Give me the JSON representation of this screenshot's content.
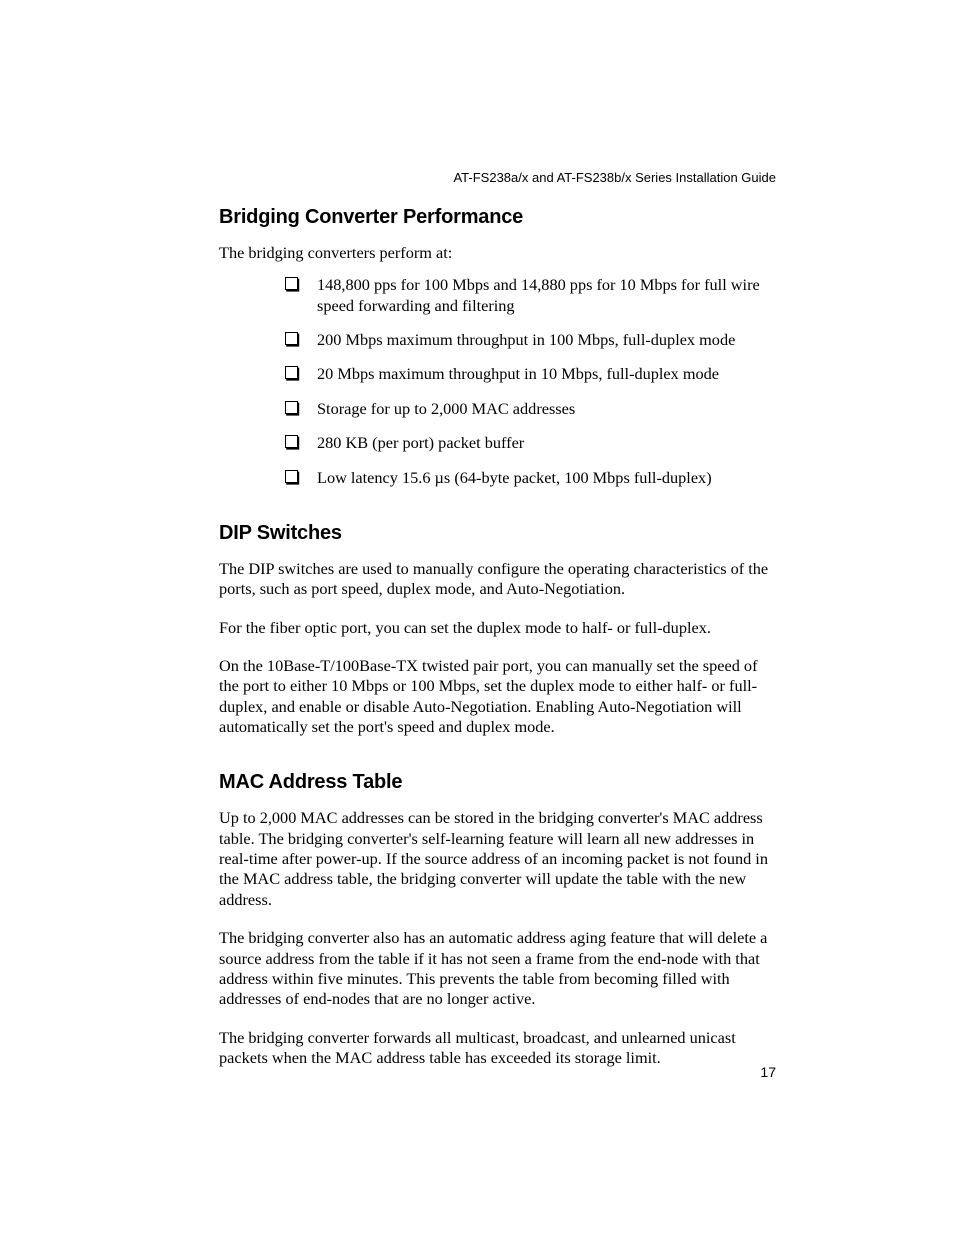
{
  "header": {
    "text": "AT-FS238a/x and AT-FS238b/x Series Installation Guide"
  },
  "sections": {
    "bridging": {
      "heading": "Bridging Converter Performance",
      "intro": "The bridging converters perform at:",
      "bullets": [
        "148,800 pps for 100 Mbps and 14,880 pps for 10 Mbps for full wire speed forwarding and filtering",
        "200 Mbps maximum throughput in 100 Mbps, full-duplex mode",
        "20 Mbps maximum throughput in 10 Mbps, full-duplex mode",
        "Storage for up to 2,000 MAC addresses",
        "280 KB (per port) packet buffer",
        "Low latency 15.6 µs (64-byte packet, 100 Mbps full-duplex)"
      ]
    },
    "dip": {
      "heading": "DIP Switches",
      "paras": [
        "The DIP switches are used to manually configure the operating characteristics of the ports, such as port speed, duplex mode, and Auto-Negotiation.",
        "For the fiber optic port, you can set the duplex mode to half- or full-duplex.",
        "On the 10Base-T/100Base-TX twisted pair port, you can manually set the speed of the port to either 10 Mbps or 100 Mbps, set the duplex mode to either half- or full-duplex, and enable or disable Auto-Negotiation. Enabling Auto-Negotiation will automatically set the port's speed and duplex mode."
      ]
    },
    "mac": {
      "heading": "MAC Address Table",
      "paras": [
        "Up to 2,000 MAC addresses can be stored in the bridging converter's MAC address table. The bridging converter's self-learning feature will learn all new addresses in real-time after power-up. If the source address of an incoming packet is not found in the MAC address table, the bridging converter will update the table with the new address.",
        "The bridging converter also has an automatic address aging feature that will delete a source address from the table if it has not seen a frame from the end-node with that address within five minutes. This prevents the table from becoming filled with addresses of end-nodes that are no longer active.",
        "The bridging converter forwards all multicast, broadcast, and unlearned unicast packets when the MAC address table has exceeded its storage limit."
      ]
    }
  },
  "page_number": "17"
}
